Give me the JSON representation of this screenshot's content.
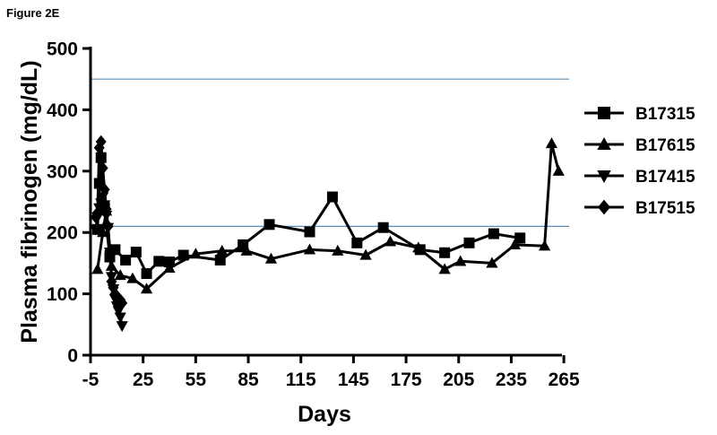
{
  "figure_label": "Figure 2E",
  "chart_data": {
    "type": "line",
    "title": "",
    "xlabel": "Days",
    "ylabel": "Plasma fibrinogen (mg/dL)",
    "xlim": [
      -5,
      268
    ],
    "ylim": [
      0,
      500
    ],
    "x_ticks": [
      -5,
      25,
      55,
      85,
      115,
      145,
      175,
      205,
      235,
      265
    ],
    "y_ticks": [
      0,
      100,
      200,
      300,
      400,
      500
    ],
    "reference_lines": [
      {
        "y": 450,
        "color": "#5b8db8"
      },
      {
        "y": 210,
        "color": "#5b8db8"
      }
    ],
    "legend_position": "right",
    "series": [
      {
        "name": "B17315",
        "marker": "square",
        "x": [
          -1,
          0,
          1,
          3,
          6,
          9,
          15,
          21,
          27,
          34,
          40,
          48,
          69,
          82,
          97,
          120,
          133,
          147,
          162,
          183,
          197,
          211,
          225,
          240
        ],
        "y": [
          205,
          280,
          322,
          240,
          160,
          172,
          155,
          168,
          133,
          153,
          152,
          163,
          155,
          180,
          213,
          201,
          258,
          183,
          208,
          172,
          167,
          183,
          198,
          191
        ]
      },
      {
        "name": "B17615",
        "marker": "triangle-up",
        "x": [
          -1,
          2,
          4,
          7,
          12,
          19,
          27,
          40,
          55,
          70,
          84,
          98,
          120,
          136,
          152,
          166,
          182,
          197,
          206,
          224,
          237,
          254,
          258,
          262
        ],
        "y": [
          140,
          200,
          235,
          145,
          130,
          125,
          108,
          142,
          165,
          170,
          170,
          157,
          172,
          170,
          163,
          185,
          175,
          140,
          153,
          150,
          180,
          178,
          345,
          300
        ]
      },
      {
        "name": "B17415",
        "marker": "triangle-down",
        "x": [
          -2,
          -1,
          0,
          1,
          2,
          3,
          4,
          5,
          6,
          7,
          8,
          9,
          10,
          11,
          12,
          13
        ],
        "y": [
          205,
          225,
          240,
          248,
          258,
          245,
          228,
          208,
          168,
          128,
          108,
          92,
          80,
          72,
          62,
          48
        ]
      },
      {
        "name": "B17515",
        "marker": "diamond",
        "x": [
          -2,
          -1,
          0,
          1,
          2,
          3,
          4,
          5,
          6,
          7,
          8,
          9,
          10,
          11,
          12,
          13
        ],
        "y": [
          225,
          232,
          338,
          348,
          305,
          270,
          238,
          210,
          170,
          120,
          110,
          100,
          95,
          90,
          90,
          85
        ]
      }
    ]
  }
}
